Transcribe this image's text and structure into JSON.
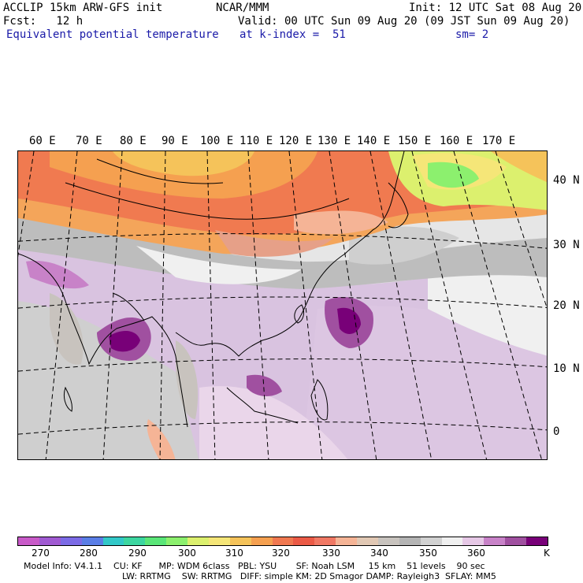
{
  "header": {
    "line1_left": "ACCLIP 15km ARW-GFS init",
    "line1_center": "NCAR/MMM",
    "line1_right": "Init: 12 UTC Sat 08 Aug 20",
    "line2_left": "Fcst:   12 h",
    "line2_right": "Valid: 00 UTC Sun 09 Aug 20 (09 JST Sun 09 Aug 20)",
    "line3_left": "Equivalent potential temperature",
    "line3_center": "at k-index =  51",
    "line3_right": "sm= 2"
  },
  "map": {
    "lon_labels": [
      "60 E",
      "70 E",
      "80 E",
      "90 E",
      "100 E",
      "110 E",
      "120 E",
      "130 E",
      "140 E",
      "150 E",
      "160 E",
      "170 E"
    ],
    "lat_labels": [
      "40 N",
      "30 N",
      "20 N",
      "10 N",
      "0"
    ]
  },
  "colorbar": {
    "colors": [
      "#c85ac8",
      "#a05ad2",
      "#7c6be6",
      "#5a7ee6",
      "#32c8c8",
      "#3cd6a0",
      "#5ae678",
      "#8cf06e",
      "#dcf06e",
      "#f5e678",
      "#f5c35a",
      "#f5a050",
      "#f07850",
      "#eb5a46",
      "#f07864",
      "#f5b496",
      "#e1c8b4",
      "#c8c3be",
      "#b4b4b4",
      "#d2d2d2",
      "#f0f0f0",
      "#e6c8e6",
      "#c882c8",
      "#a050a0",
      "#780078"
    ],
    "ticks": [
      "270",
      "280",
      "290",
      "300",
      "310",
      "320",
      "330",
      "340",
      "350",
      "360"
    ],
    "unit": "K"
  },
  "footer": {
    "line1": "Model Info: V4.1.1    CU: KF      MP: WDM 6class   PBL: YSU       SF: Noah LSM     15 km    51 levels    90 sec",
    "line2": "LW: RRTMG    SW: RRTMG   DIFF: simple KM: 2D Smagor DAMP: Rayleigh3  SFLAY: MM5"
  }
}
